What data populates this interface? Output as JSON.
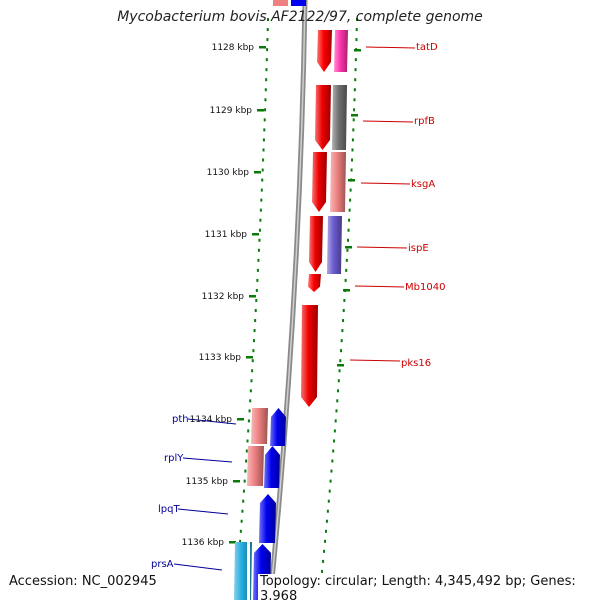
{
  "title": "Mycobacterium bovis AF2122/97, complete genome",
  "footer": {
    "accession": "Accession: NC_002945",
    "summary": "Topology: circular; Length: 4,345,492 bp; Genes: 3,968"
  },
  "colors": {
    "backbone": "#8a8a8a",
    "ruler": "#0a7a0a",
    "forward_label": "#cc0000",
    "reverse_label": "#000099"
  },
  "ruler_labels": [
    "1128 kbp",
    "1129 kbp",
    "1130 kbp",
    "1131 kbp",
    "1132 kbp",
    "1133 kbp",
    "1134 kbp",
    "1135 kbp",
    "1136 kbp"
  ],
  "forward_genes": [
    {
      "label": "tatD",
      "color": "#ff0000"
    },
    {
      "label": "rpfB",
      "color": "#ee0000"
    },
    {
      "label": "ksgA",
      "color": "#ee0000"
    },
    {
      "label": "ispE",
      "color": "#ee0000"
    },
    {
      "label": "Mb1040",
      "color": "#ff0000"
    },
    {
      "label": "pks16",
      "color": "#ee0000"
    }
  ],
  "forward_cog": [
    {
      "color": "#ff33aa"
    },
    {
      "color": "#707070"
    },
    {
      "color": "#ee8080"
    },
    {
      "color": "#6a5acd"
    }
  ],
  "reverse_genes": [
    {
      "label": "pth",
      "color": "#0000ee"
    },
    {
      "label": "rplY",
      "color": "#0000ee"
    },
    {
      "label": "lpqT",
      "color": "#0000ee"
    },
    {
      "label": "prsA",
      "color": "#0000ee"
    }
  ],
  "reverse_cog": [
    {
      "color": "#ee8080"
    },
    {
      "color": "#ee8080"
    },
    {
      "color": "#22aadd"
    }
  ]
}
